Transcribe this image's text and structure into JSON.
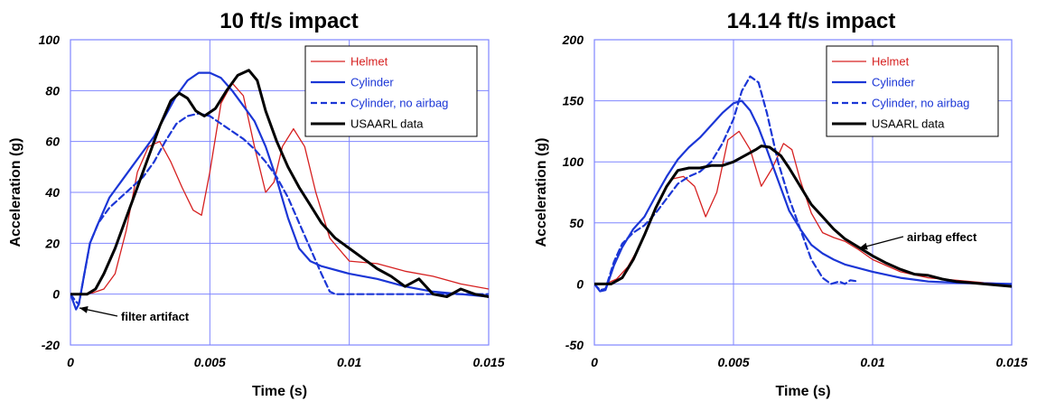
{
  "chart_data": [
    {
      "type": "line",
      "title": "10 ft/s impact",
      "xlabel": "Time (s)",
      "ylabel": "Acceleration (g)",
      "xlim": [
        0,
        0.015
      ],
      "ylim": [
        -20,
        100
      ],
      "xticks": [
        0,
        0.005,
        0.01,
        0.015
      ],
      "xtick_labels": [
        "0",
        "0.005",
        "0.01",
        "0.015"
      ],
      "yticks": [
        -20,
        0,
        20,
        40,
        60,
        80,
        100
      ],
      "ytick_labels": [
        "-20",
        "0",
        "20",
        "40",
        "60",
        "80",
        "100"
      ],
      "grid": true,
      "legend_position": "top-right",
      "series": [
        {
          "name": "Helmet",
          "color": "#d62020",
          "style": "solid",
          "width": 1.3,
          "x": [
            0,
            0.0004,
            0.0008,
            0.0012,
            0.0016,
            0.002,
            0.0024,
            0.0028,
            0.0032,
            0.0036,
            0.004,
            0.0044,
            0.0047,
            0.005,
            0.0054,
            0.0058,
            0.0062,
            0.0066,
            0.007,
            0.0073,
            0.0076,
            0.008,
            0.0084,
            0.0088,
            0.0093,
            0.01,
            0.011,
            0.012,
            0.013,
            0.014,
            0.015
          ],
          "y": [
            0,
            0,
            0.5,
            2,
            8,
            25,
            48,
            58,
            60,
            52,
            42,
            33,
            31,
            48,
            75,
            83,
            78,
            58,
            40,
            44,
            58,
            65,
            58,
            40,
            22,
            13,
            12,
            9,
            7,
            4,
            2
          ]
        },
        {
          "name": "Cylinder",
          "color": "#1b36d6",
          "style": "solid",
          "width": 2.2,
          "x": [
            0,
            0.0001,
            0.0002,
            0.0003,
            0.0005,
            0.0007,
            0.001,
            0.0014,
            0.0018,
            0.0022,
            0.0026,
            0.003,
            0.0034,
            0.0038,
            0.0042,
            0.0046,
            0.005,
            0.0054,
            0.0058,
            0.0062,
            0.0066,
            0.007,
            0.0074,
            0.0078,
            0.0082,
            0.0086,
            0.009,
            0.01,
            0.011,
            0.012,
            0.013,
            0.014,
            0.015
          ],
          "y": [
            0,
            -3,
            -6,
            -4,
            8,
            20,
            28,
            38,
            44,
            50,
            56,
            62,
            70,
            78,
            84,
            87,
            87,
            85,
            80,
            74,
            68,
            58,
            45,
            30,
            18,
            13,
            11,
            8,
            6,
            3,
            1,
            0,
            -1
          ]
        },
        {
          "name": "Cylinder, no airbag",
          "color": "#1b36d6",
          "style": "dashed",
          "width": 2.2,
          "x": [
            0,
            0.0002,
            0.0003,
            0.0005,
            0.0007,
            0.001,
            0.0014,
            0.0018,
            0.0022,
            0.0026,
            0.003,
            0.0034,
            0.0038,
            0.0042,
            0.0046,
            0.005,
            0.0054,
            0.0058,
            0.0062,
            0.0066,
            0.007,
            0.0074,
            0.0078,
            0.0082,
            0.0086,
            0.009,
            0.0093,
            0.0095,
            0.01,
            0.012,
            0.014,
            0.015
          ],
          "y": [
            0,
            -3,
            -4,
            8,
            20,
            28,
            34,
            38,
            42,
            46,
            52,
            60,
            67,
            70,
            71,
            70,
            67,
            64,
            61,
            57,
            52,
            46,
            38,
            28,
            18,
            8,
            1,
            0,
            0,
            0,
            0,
            0
          ]
        },
        {
          "name": "USAARL data",
          "color": "#000000",
          "style": "solid",
          "width": 3,
          "x": [
            0,
            0.0003,
            0.0006,
            0.0009,
            0.0012,
            0.0016,
            0.002,
            0.0024,
            0.0028,
            0.0032,
            0.0036,
            0.0039,
            0.0042,
            0.0045,
            0.0048,
            0.0052,
            0.0056,
            0.006,
            0.0064,
            0.0067,
            0.007,
            0.0074,
            0.0078,
            0.0082,
            0.0086,
            0.009,
            0.0095,
            0.01,
            0.0105,
            0.011,
            0.0115,
            0.012,
            0.0125,
            0.013,
            0.0135,
            0.014,
            0.0145,
            0.015
          ],
          "y": [
            0,
            0,
            0,
            2,
            8,
            18,
            30,
            42,
            54,
            66,
            76,
            79,
            77,
            72,
            70,
            73,
            80,
            86,
            88,
            84,
            72,
            60,
            50,
            42,
            35,
            28,
            22,
            18,
            14,
            10,
            7,
            3,
            6,
            0,
            -1,
            2,
            0,
            -1
          ]
        }
      ],
      "annotations": [
        {
          "text": "filter artifact",
          "x": 0.0015,
          "y": -12
        }
      ]
    },
    {
      "type": "line",
      "title": "14.14 ft/s impact",
      "xlabel": "Time (s)",
      "ylabel": "Acceleration (g)",
      "xlim": [
        0,
        0.015
      ],
      "ylim": [
        -50,
        200
      ],
      "xticks": [
        0,
        0.005,
        0.01,
        0.015
      ],
      "xtick_labels": [
        "0",
        "0.005",
        "0.01",
        "0.015"
      ],
      "yticks": [
        -50,
        0,
        50,
        100,
        150,
        200
      ],
      "ytick_labels": [
        "-50",
        "0",
        "50",
        "100",
        "150",
        "200"
      ],
      "grid": true,
      "legend_position": "top-right",
      "series": [
        {
          "name": "Helmet",
          "color": "#d62020",
          "style": "solid",
          "width": 1.3,
          "x": [
            0,
            0.0004,
            0.0008,
            0.0012,
            0.0016,
            0.002,
            0.0024,
            0.0028,
            0.0032,
            0.0036,
            0.004,
            0.0044,
            0.0048,
            0.0052,
            0.0056,
            0.006,
            0.0064,
            0.0068,
            0.0071,
            0.0074,
            0.0078,
            0.0082,
            0.0086,
            0.009,
            0.0095,
            0.01,
            0.011,
            0.012,
            0.013,
            0.014,
            0.015
          ],
          "y": [
            0,
            0,
            4,
            14,
            30,
            50,
            72,
            86,
            88,
            80,
            55,
            75,
            118,
            125,
            110,
            80,
            95,
            115,
            110,
            85,
            58,
            42,
            38,
            35,
            28,
            20,
            10,
            5,
            3,
            1,
            0
          ]
        },
        {
          "name": "Cylinder",
          "color": "#1b36d6",
          "style": "solid",
          "width": 2.2,
          "x": [
            0,
            0.0002,
            0.0004,
            0.0007,
            0.001,
            0.0014,
            0.0018,
            0.0022,
            0.0026,
            0.003,
            0.0034,
            0.0038,
            0.0042,
            0.0046,
            0.005,
            0.0053,
            0.0056,
            0.0059,
            0.0062,
            0.0066,
            0.007,
            0.0074,
            0.0078,
            0.0082,
            0.0086,
            0.009,
            0.01,
            0.011,
            0.012,
            0.013,
            0.015
          ],
          "y": [
            0,
            -6,
            -5,
            15,
            30,
            45,
            55,
            72,
            88,
            102,
            112,
            120,
            130,
            140,
            148,
            150,
            142,
            128,
            110,
            85,
            60,
            45,
            32,
            25,
            20,
            16,
            10,
            5,
            2,
            1,
            0
          ]
        },
        {
          "name": "Cylinder, no airbag",
          "color": "#1b36d6",
          "style": "dashed",
          "width": 2.2,
          "x": [
            0,
            0.0002,
            0.0004,
            0.0007,
            0.001,
            0.0014,
            0.0018,
            0.0022,
            0.0026,
            0.003,
            0.0034,
            0.0038,
            0.0042,
            0.0046,
            0.005,
            0.0053,
            0.0056,
            0.0059,
            0.0062,
            0.0066,
            0.007,
            0.0074,
            0.0078,
            0.0082,
            0.0085,
            0.0088,
            0.009,
            0.0092,
            0.0095
          ],
          "y": [
            0,
            -5,
            -4,
            18,
            33,
            42,
            48,
            58,
            70,
            82,
            88,
            92,
            100,
            115,
            135,
            158,
            170,
            165,
            140,
            100,
            70,
            45,
            20,
            5,
            0,
            2,
            0,
            3,
            2
          ]
        },
        {
          "name": "USAARL data",
          "color": "#000000",
          "style": "solid",
          "width": 3,
          "x": [
            0,
            0.0003,
            0.0006,
            0.001,
            0.0014,
            0.0018,
            0.0022,
            0.0026,
            0.003,
            0.0034,
            0.0038,
            0.0042,
            0.0046,
            0.005,
            0.0054,
            0.0058,
            0.006,
            0.0063,
            0.0067,
            0.007,
            0.0074,
            0.0078,
            0.0082,
            0.0086,
            0.009,
            0.0095,
            0.01,
            0.0105,
            0.011,
            0.0115,
            0.012,
            0.0125,
            0.013,
            0.0135,
            0.014,
            0.015
          ],
          "y": [
            0,
            0,
            0,
            5,
            20,
            40,
            62,
            80,
            93,
            95,
            95,
            97,
            97,
            100,
            105,
            110,
            113,
            112,
            105,
            95,
            80,
            65,
            55,
            45,
            37,
            30,
            23,
            17,
            12,
            8,
            7,
            4,
            2,
            1,
            0,
            -2
          ]
        }
      ],
      "annotations": [
        {
          "text": "airbag effect",
          "x": 0.0105,
          "y": 40
        }
      ]
    }
  ]
}
